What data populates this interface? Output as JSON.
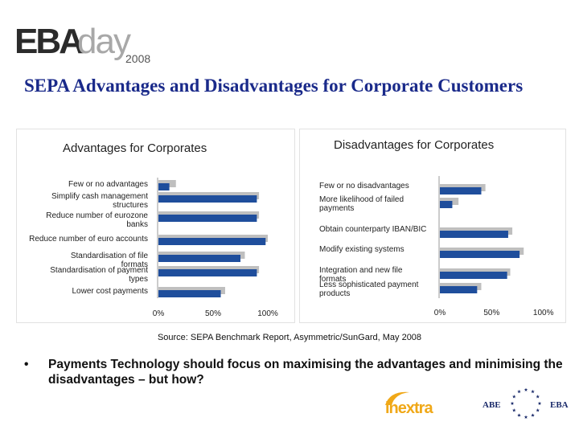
{
  "header": {
    "logo_main": "EBA",
    "logo_day": "day",
    "logo_year": "2008",
    "title": "SEPA Advantages and Disadvantages for Corporate Customers"
  },
  "chart_data": [
    {
      "type": "bar",
      "orientation": "horizontal",
      "title": "Advantages for Corporates",
      "categories": [
        "Few or no advantages",
        "Simplify cash management structures",
        "Reduce number of eurozone banks",
        "Reduce number of euro accounts",
        "Standardisation of file formats",
        "Standardisation of payment types",
        "Lower cost payments"
      ],
      "values": [
        10,
        90,
        90,
        98,
        75,
        90,
        57
      ],
      "shadow_values": [
        16,
        92,
        92,
        100,
        79,
        92,
        61
      ],
      "xlim": [
        0,
        100
      ],
      "xticks": [
        "0%",
        "50%",
        "100%"
      ],
      "colors": {
        "bar": "#1f4e9c",
        "shadow": "#bfbfbf"
      }
    },
    {
      "type": "bar",
      "orientation": "horizontal",
      "title": "Disadvantages for Corporates",
      "categories": [
        "Few or no disadvantages",
        "More likelihood of failed payments",
        "Obtain counterparty IBAN/BIC",
        "Modify existing systems",
        "Integration and new file formats",
        "Less sophisticated payment products"
      ],
      "values": [
        40,
        12,
        66,
        77,
        65,
        36
      ],
      "shadow_values": [
        44,
        18,
        70,
        81,
        68,
        40
      ],
      "xlim": [
        0,
        115
      ],
      "xticks": [
        "0%",
        "50%",
        "100%"
      ],
      "colors": {
        "bar": "#1f4e9c",
        "shadow": "#bfbfbf"
      }
    }
  ],
  "source": "Source: SEPA Benchmark Report, Asymmetric/SunGard,  May 2008",
  "bullet": {
    "symbol": "•",
    "text": "Payments Technology should focus on maximising the advantages and minimising the disadvantages – but how?"
  },
  "footer_logos": {
    "inextra": "inextra",
    "abe": "ABE",
    "eba": "EBA"
  }
}
